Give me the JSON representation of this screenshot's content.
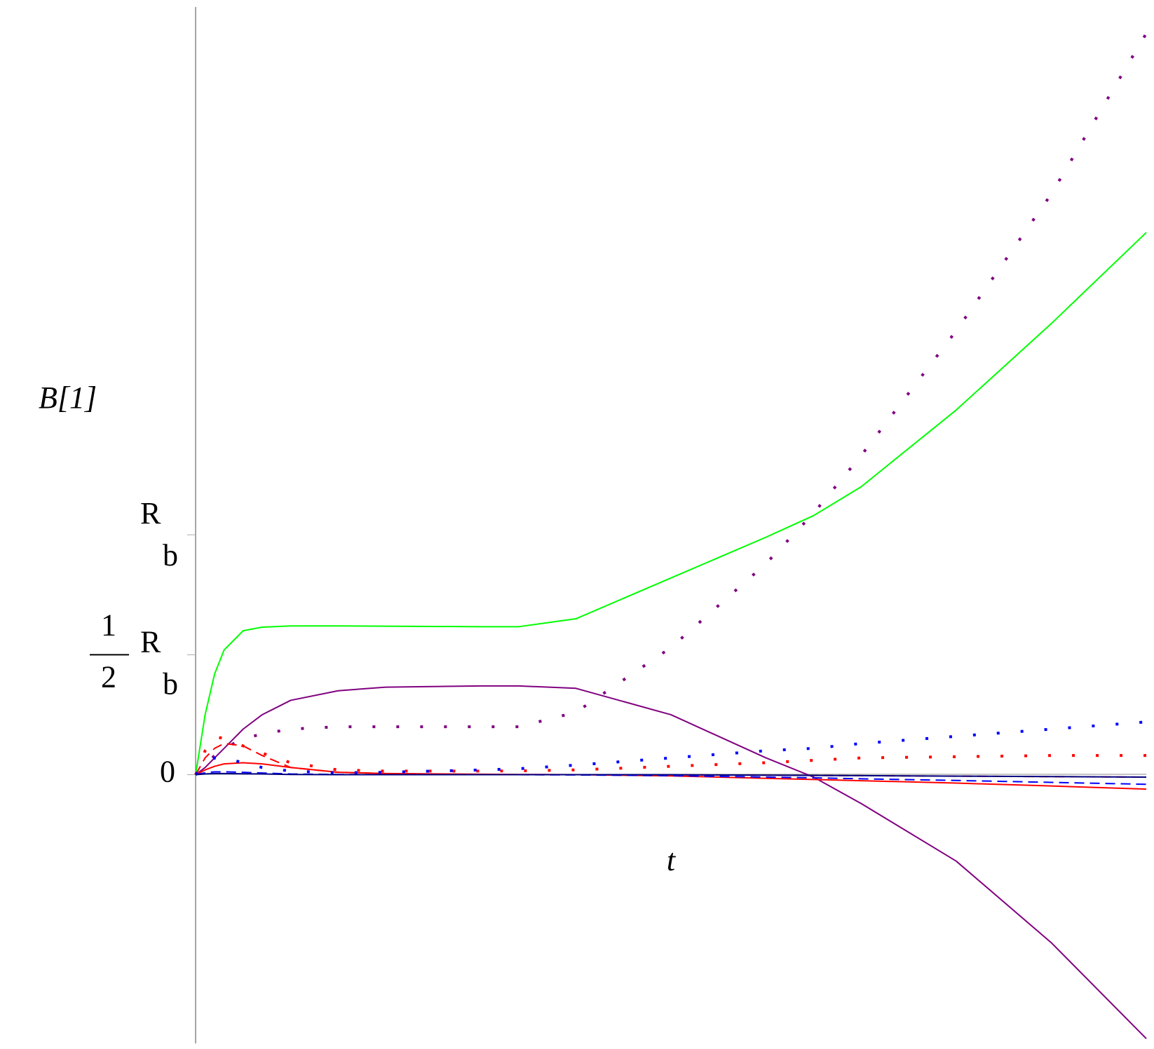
{
  "chart_data": {
    "type": "line",
    "x_label": "t",
    "y_label": "B[1]",
    "x": [
      0,
      0.01,
      0.02,
      0.03,
      0.05,
      0.07,
      0.1,
      0.15,
      0.2,
      0.3,
      0.34,
      0.4,
      0.5,
      0.6,
      0.65,
      0.7,
      0.8,
      0.9,
      1
    ],
    "xlim": [
      0,
      1
    ],
    "ylim": [
      -1.12,
      3.2
    ],
    "yticks": [
      0,
      {
        "value": 0.5,
        "label": "1/2 R_b"
      },
      {
        "value": 1,
        "label": "R_b"
      }
    ],
    "series": [
      {
        "color": "#00ff00",
        "dash": "solid",
        "values": [
          0,
          0.25,
          0.42,
          0.52,
          0.6,
          0.615,
          0.62,
          0.62,
          0.619,
          0.617,
          0.617,
          0.65,
          0.82,
          0.99,
          1.08,
          1.2,
          1.52,
          1.88,
          2.26
        ]
      },
      {
        "color": "#800080",
        "dash": "solid",
        "values": [
          0,
          0.03,
          0.07,
          0.11,
          0.19,
          0.25,
          0.31,
          0.35,
          0.365,
          0.37,
          0.37,
          0.36,
          0.25,
          0.07,
          -0.01,
          -0.12,
          -0.36,
          -0.7,
          -1.1
        ]
      },
      {
        "color": "#800080",
        "dash": "dotted",
        "values": [
          0,
          0.04,
          0.08,
          0.11,
          0.15,
          0.17,
          0.19,
          0.2,
          0.2,
          0.2,
          0.2,
          0.26,
          0.53,
          0.88,
          1.09,
          1.33,
          1.85,
          2.42,
          3.09
        ]
      },
      {
        "color": "#ff0000",
        "dash": "dashed",
        "values": [
          0,
          0.07,
          0.11,
          0.13,
          0.12,
          0.08,
          0.03,
          0.01,
          0.005,
          0,
          0,
          0,
          0,
          -0.002,
          -0.003,
          -0.004,
          -0.006,
          -0.008,
          -0.01
        ]
      },
      {
        "color": "#ff0000",
        "dash": "solid",
        "values": [
          0,
          0.02,
          0.035,
          0.045,
          0.05,
          0.045,
          0.03,
          0.01,
          0.005,
          0.002,
          0.001,
          0,
          -0.005,
          -0.015,
          -0.02,
          -0.025,
          -0.035,
          -0.047,
          -0.06
        ]
      },
      {
        "color": "#ff0000",
        "dash": "dotted",
        "values": [
          0,
          0.1,
          0.16,
          0.15,
          0.12,
          0.09,
          0.05,
          0.02,
          0.015,
          0.015,
          0.016,
          0.02,
          0.035,
          0.05,
          0.06,
          0.07,
          0.075,
          0.08,
          0.08
        ]
      },
      {
        "color": "#0000ff",
        "dash": "dotted",
        "values": [
          0,
          0.04,
          0.07,
          0.07,
          0.05,
          0.03,
          0.015,
          0.008,
          0.01,
          0.02,
          0.025,
          0.04,
          0.07,
          0.1,
          0.11,
          0.13,
          0.16,
          0.19,
          0.22
        ]
      },
      {
        "color": "#0000ff",
        "dash": "dashed",
        "values": [
          0,
          0.008,
          0.012,
          0.012,
          0.01,
          0.007,
          0.003,
          0.001,
          0,
          0,
          0,
          -0.001,
          -0.004,
          -0.01,
          -0.013,
          -0.017,
          -0.024,
          -0.032,
          -0.04
        ]
      },
      {
        "color": "#000080",
        "dash": "solid",
        "values": [
          0,
          0.003,
          0.005,
          0.005,
          0.004,
          0.003,
          0.001,
          0,
          0,
          0,
          0,
          0,
          0,
          -0.002,
          -0.003,
          -0.004,
          -0.006,
          -0.008,
          -0.01
        ]
      }
    ]
  }
}
